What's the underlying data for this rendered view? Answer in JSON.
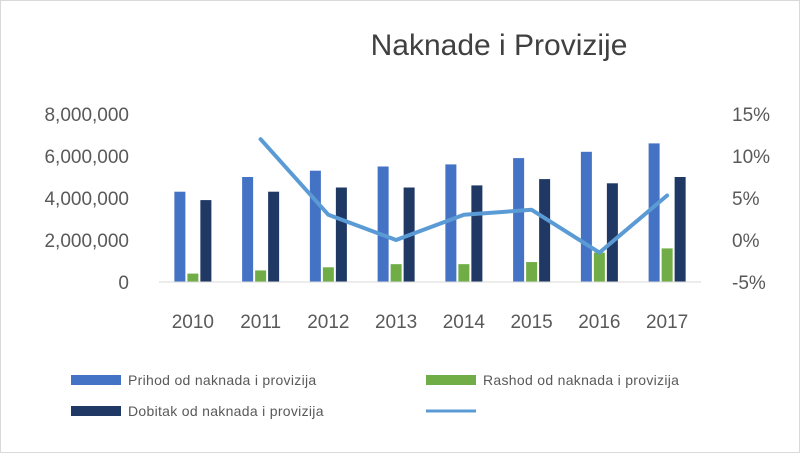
{
  "chart_data": {
    "type": "bar",
    "title": "Naknade i Provizije",
    "categories": [
      "2010",
      "2011",
      "2012",
      "2013",
      "2014",
      "2015",
      "2016",
      "2017"
    ],
    "series": [
      {
        "name": "Prihod od naknada i provizija",
        "type": "bar",
        "axis": "left",
        "color": "#4472c4",
        "values": [
          4300000,
          5000000,
          5300000,
          5500000,
          5600000,
          5900000,
          6200000,
          6600000
        ]
      },
      {
        "name": "Rashod od naknada i provizija",
        "type": "bar",
        "axis": "left",
        "color": "#70ad47",
        "values": [
          400000,
          550000,
          700000,
          850000,
          850000,
          950000,
          1400000,
          1600000
        ]
      },
      {
        "name": "Dobitak od naknada i provizija",
        "type": "bar",
        "axis": "left",
        "color": "#1f3864",
        "values": [
          3900000,
          4300000,
          4500000,
          4500000,
          4600000,
          4900000,
          4700000,
          5000000
        ]
      },
      {
        "name": "",
        "type": "line",
        "axis": "right",
        "color": "#5b9bd5",
        "values": [
          null,
          0.12,
          0.03,
          0.0,
          0.03,
          0.036,
          -0.015,
          0.053
        ]
      }
    ],
    "y_left": {
      "min": 0,
      "max": 8000000,
      "ticks": [
        0,
        2000000,
        4000000,
        6000000,
        8000000
      ],
      "tick_labels": [
        "0",
        "2,000,000",
        "4,000,000",
        "6,000,000",
        "8,000,000"
      ]
    },
    "y_right": {
      "min": -0.05,
      "max": 0.15,
      "ticks": [
        -0.05,
        0,
        0.05,
        0.1,
        0.15
      ],
      "tick_labels": [
        "-5%",
        "0%",
        "5%",
        "10%",
        "15%"
      ]
    },
    "grid": false,
    "legend_position": "bottom"
  }
}
